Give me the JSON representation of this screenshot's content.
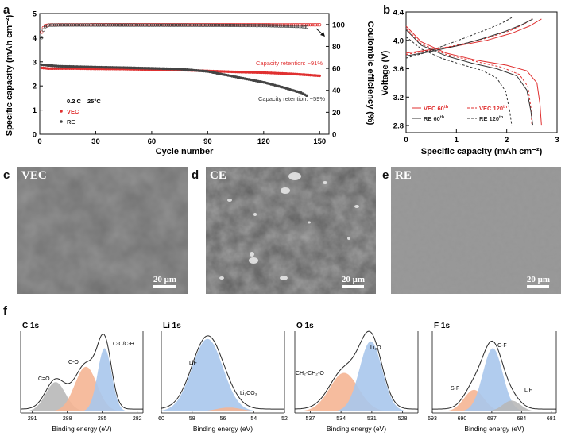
{
  "panel_labels": {
    "a": "a",
    "b": "b",
    "c": "c",
    "d": "d",
    "e": "e",
    "f": "f"
  },
  "colors": {
    "vec": "#e03030",
    "re": "#444444",
    "c1": "#b8b8b8",
    "c2": "#f5b594",
    "c3": "#a9c6ec",
    "fit": "#2a2a2a"
  },
  "panel_a": {
    "ylabel_left": "Specific capacity (mAh cm⁻²)",
    "ylabel_right": "Coulombic efficiency (%)",
    "xlabel": "Cycle number",
    "condition_rate": "0.2 C",
    "condition_temp": "25°C",
    "legend_vec": "VEC",
    "legend_re": "RE",
    "retention_vec": "Capacity retention: ~91%",
    "retention_re": "Capacity retention: ~59%",
    "xticks": [
      "0",
      "30",
      "60",
      "90",
      "120",
      "150"
    ],
    "yticks_left": [
      "0",
      "1",
      "2",
      "3",
      "4",
      "5"
    ],
    "yticks_right": [
      "0",
      "20",
      "40",
      "60",
      "80",
      "100"
    ]
  },
  "panel_b": {
    "ylabel": "Voltage (V)",
    "xlabel": "Specific capacity (mAh cm⁻²)",
    "xticks": [
      "0",
      "1",
      "2",
      "3"
    ],
    "yticks": [
      "2.8",
      "3.2",
      "3.6",
      "4.0",
      "4.4"
    ],
    "legend": [
      {
        "name": "VEC 60",
        "sup": "th",
        "style": "solid",
        "color": "#e03030"
      },
      {
        "name": "VEC 120",
        "sup": "th",
        "style": "dash",
        "color": "#e03030"
      },
      {
        "name": "RE 60",
        "sup": "th",
        "style": "solid",
        "color": "#333333"
      },
      {
        "name": "RE 120",
        "sup": "th",
        "style": "dash",
        "color": "#333333"
      }
    ]
  },
  "sem": {
    "c_label": "VEC",
    "d_label": "CE",
    "e_label": "RE",
    "scale_c": "20 μm",
    "scale_d": "20 μm",
    "scale_e": "20 μm"
  },
  "xps": {
    "xlabel": "Binding energy (eV)",
    "panels": [
      {
        "title": "C 1s",
        "ticks": [
          "291",
          "288",
          "285",
          "282"
        ],
        "peaks": [
          {
            "label": "C=O"
          },
          {
            "label": "C-O"
          },
          {
            "label": "C-C/C-H"
          }
        ]
      },
      {
        "title": "Li 1s",
        "ticks": [
          "60",
          "58",
          "56",
          "54",
          "52"
        ],
        "peaks": [
          {
            "label": "LiF"
          },
          {
            "label": "Li₂CO₃"
          }
        ]
      },
      {
        "title": "O 1s",
        "ticks": [
          "537",
          "534",
          "531",
          "528"
        ],
        "peaks": [
          {
            "label": "CH₂-CH₂-O"
          },
          {
            "label": "Li₂O"
          }
        ]
      },
      {
        "title": "F 1s",
        "ticks": [
          "693",
          "690",
          "687",
          "684",
          "681"
        ],
        "peaks": [
          {
            "label": "S-F"
          },
          {
            "label": "C-F"
          },
          {
            "label": "LiF"
          }
        ]
      }
    ]
  },
  "chart_data": [
    {
      "type": "scatter",
      "title": "",
      "xlabel": "Cycle number",
      "ylabel": "Specific capacity (mAh cm⁻²)",
      "ylabel_right": "Coulombic efficiency (%)",
      "xlim": [
        0,
        155
      ],
      "ylim": [
        0,
        5
      ],
      "ylim_right": [
        0,
        110
      ],
      "series": [
        {
          "name": "VEC",
          "axis": "left",
          "x": [
            1,
            5,
            10,
            20,
            30,
            45,
            60,
            75,
            90,
            105,
            120,
            135,
            150
          ],
          "values": [
            2.75,
            2.72,
            2.72,
            2.72,
            2.71,
            2.7,
            2.68,
            2.66,
            2.62,
            2.58,
            2.55,
            2.5,
            2.42
          ]
        },
        {
          "name": "RE",
          "axis": "left",
          "x": [
            1,
            5,
            10,
            20,
            30,
            45,
            60,
            75,
            90,
            100,
            110,
            120,
            130,
            140,
            143
          ],
          "values": [
            2.88,
            2.85,
            2.82,
            2.8,
            2.78,
            2.76,
            2.73,
            2.7,
            2.6,
            2.45,
            2.3,
            2.15,
            1.95,
            1.72,
            1.6
          ]
        },
        {
          "name": "VEC",
          "axis": "right",
          "x": [
            1,
            2,
            3,
            5,
            10,
            30,
            60,
            90,
            120,
            150
          ],
          "values": [
            93,
            97,
            99,
            99.6,
            99.7,
            99.8,
            99.8,
            99.8,
            99.8,
            99.7
          ]
        },
        {
          "name": "RE",
          "axis": "right",
          "x": [
            1,
            2,
            3,
            5,
            10,
            30,
            60,
            90,
            120,
            140,
            143
          ],
          "values": [
            88,
            95,
            98,
            99.4,
            99.5,
            99.5,
            99.4,
            99.3,
            99.0,
            98.2,
            97.6
          ]
        }
      ]
    },
    {
      "type": "line",
      "title": "",
      "xlabel": "Specific capacity (mAh cm⁻²)",
      "ylabel": "Voltage (V)",
      "xlim": [
        0,
        3
      ],
      "ylim": [
        2.7,
        4.4
      ],
      "series": [
        {
          "name": "VEC 60th",
          "part": "discharge",
          "x": [
            0,
            0.3,
            0.8,
            1.4,
            2.0,
            2.4,
            2.6,
            2.66,
            2.69
          ],
          "values": [
            4.2,
            3.98,
            3.82,
            3.72,
            3.65,
            3.57,
            3.4,
            3.1,
            2.8
          ]
        },
        {
          "name": "VEC 60th",
          "part": "charge",
          "x": [
            0,
            0.4,
            1.0,
            1.6,
            2.1,
            2.45,
            2.69
          ],
          "values": [
            3.82,
            3.86,
            3.92,
            4.0,
            4.1,
            4.2,
            4.3
          ]
        },
        {
          "name": "VEC 120th",
          "part": "discharge",
          "x": [
            0,
            0.3,
            0.8,
            1.4,
            1.9,
            2.25,
            2.42,
            2.48,
            2.5
          ],
          "values": [
            4.17,
            3.95,
            3.8,
            3.7,
            3.62,
            3.52,
            3.35,
            3.05,
            2.8
          ]
        },
        {
          "name": "VEC 120th",
          "part": "charge",
          "x": [
            0,
            0.4,
            1.0,
            1.6,
            2.05,
            2.35,
            2.5
          ],
          "values": [
            3.8,
            3.85,
            3.93,
            4.03,
            4.13,
            4.23,
            4.3
          ]
        },
        {
          "name": "RE 60th",
          "part": "discharge",
          "x": [
            0,
            0.3,
            0.8,
            1.3,
            1.8,
            2.2,
            2.4,
            2.48,
            2.52
          ],
          "values": [
            4.15,
            3.93,
            3.78,
            3.68,
            3.6,
            3.5,
            3.3,
            3.0,
            2.8
          ]
        },
        {
          "name": "RE 60th",
          "part": "charge",
          "x": [
            0,
            0.4,
            1.0,
            1.5,
            1.95,
            2.3,
            2.52
          ],
          "values": [
            3.78,
            3.83,
            3.92,
            4.02,
            4.12,
            4.22,
            4.3
          ]
        },
        {
          "name": "RE 120th",
          "part": "discharge",
          "x": [
            0,
            0.3,
            0.7,
            1.1,
            1.5,
            1.8,
            1.98,
            2.06,
            2.1
          ],
          "values": [
            4.05,
            3.88,
            3.75,
            3.66,
            3.58,
            3.47,
            3.28,
            3.0,
            2.8
          ]
        },
        {
          "name": "RE 120th",
          "part": "charge",
          "x": [
            0,
            0.35,
            0.85,
            1.3,
            1.7,
            1.95,
            2.1
          ],
          "values": [
            3.75,
            3.82,
            3.95,
            4.07,
            4.18,
            4.26,
            4.32
          ]
        }
      ]
    }
  ]
}
